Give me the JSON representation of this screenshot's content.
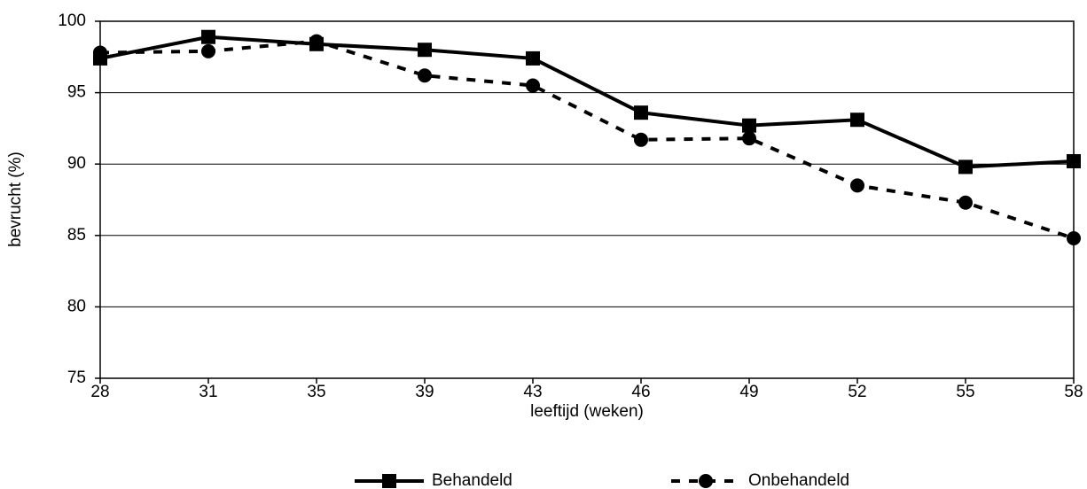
{
  "chart_data": {
    "type": "line",
    "x_label": "leeftijd (weken)",
    "y_label": "bevrucht (%)",
    "categories": [
      "28",
      "31",
      "35",
      "39",
      "43",
      "46",
      "49",
      "52",
      "55",
      "58"
    ],
    "series": [
      {
        "name": "Behandeld",
        "color": "#000000",
        "style": "solid",
        "marker": "square",
        "values": [
          97.4,
          98.9,
          98.4,
          98.0,
          97.4,
          93.6,
          92.7,
          93.1,
          89.8,
          90.2
        ]
      },
      {
        "name": "Onbehandeld",
        "color": "#000000",
        "style": "dashed",
        "marker": "circle",
        "values": [
          97.8,
          97.9,
          98.6,
          96.2,
          95.5,
          91.7,
          91.8,
          88.5,
          87.3,
          84.8
        ]
      }
    ],
    "ylim": [
      75,
      100
    ],
    "yticks": [
      75,
      80,
      85,
      90,
      95,
      100
    ],
    "grid": true,
    "legend": "bottom"
  }
}
